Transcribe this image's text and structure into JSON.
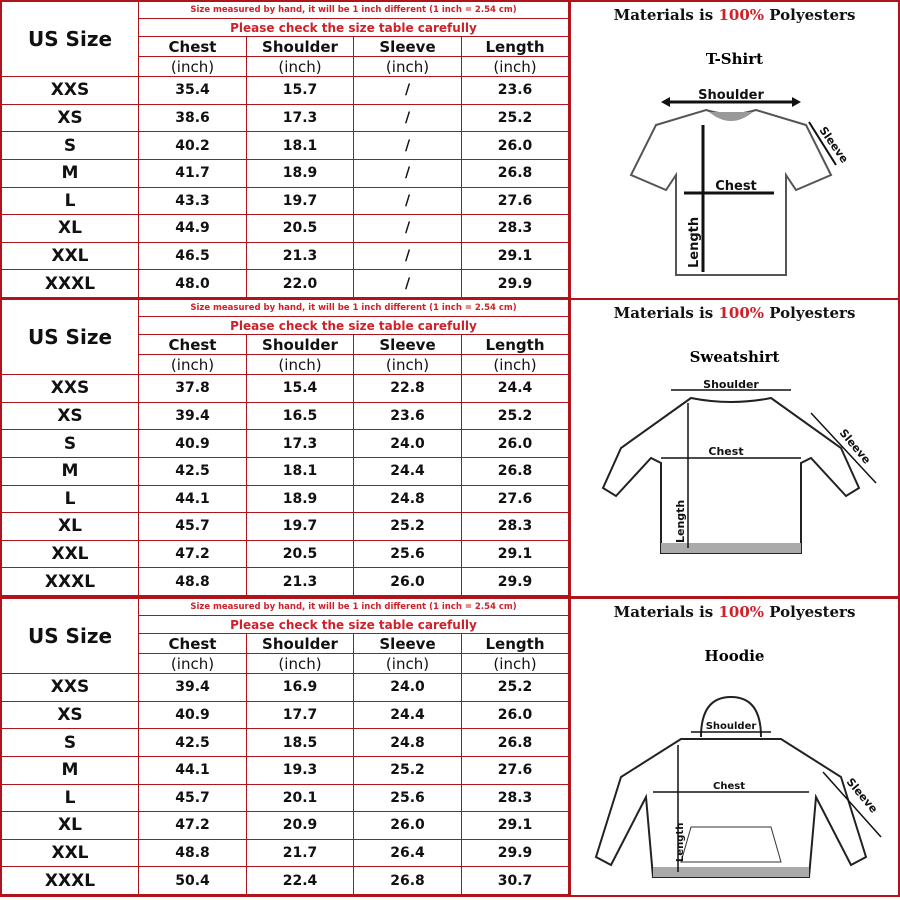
{
  "colors": {
    "accent": "#d0202a",
    "border": "#b0141a"
  },
  "panels": [
    {
      "garment": "T-Shirt",
      "garment_icon": "t-shirt-diagram-icon",
      "labels": {
        "shoulder": "Shoulder",
        "chest": "Chest",
        "sleeve": "Sleeve",
        "length": "Length"
      },
      "rows": [
        [
          "XXS",
          "35.4",
          "15.7",
          "/",
          "23.6"
        ],
        [
          "XS",
          "38.6",
          "17.3",
          "/",
          "25.2"
        ],
        [
          "S",
          "40.2",
          "18.1",
          "/",
          "26.0"
        ],
        [
          "M",
          "41.7",
          "18.9",
          "/",
          "26.8"
        ],
        [
          "L",
          "43.3",
          "19.7",
          "/",
          "27.6"
        ],
        [
          "XL",
          "44.9",
          "20.5",
          "/",
          "28.3"
        ],
        [
          "XXL",
          "46.5",
          "21.3",
          "/",
          "29.1"
        ],
        [
          "XXXL",
          "48.0",
          "22.0",
          "/",
          "29.9"
        ]
      ]
    },
    {
      "garment": "Sweatshirt",
      "garment_icon": "sweatshirt-diagram-icon",
      "labels": {
        "shoulder": "Shoulder",
        "chest": "Chest",
        "sleeve": "Sleeve",
        "length": "Length"
      },
      "rows": [
        [
          "XXS",
          "37.8",
          "15.4",
          "22.8",
          "24.4"
        ],
        [
          "XS",
          "39.4",
          "16.5",
          "23.6",
          "25.2"
        ],
        [
          "S",
          "40.9",
          "17.3",
          "24.0",
          "26.0"
        ],
        [
          "M",
          "42.5",
          "18.1",
          "24.4",
          "26.8"
        ],
        [
          "L",
          "44.1",
          "18.9",
          "24.8",
          "27.6"
        ],
        [
          "XL",
          "45.7",
          "19.7",
          "25.2",
          "28.3"
        ],
        [
          "XXL",
          "47.2",
          "20.5",
          "25.6",
          "29.1"
        ],
        [
          "XXXL",
          "48.8",
          "21.3",
          "26.0",
          "29.9"
        ]
      ]
    },
    {
      "garment": "Hoodie",
      "garment_icon": "hoodie-diagram-icon",
      "labels": {
        "shoulder": "Shoulder",
        "chest": "Chest",
        "sleeve": "Sleeve",
        "length": "Length"
      },
      "rows": [
        [
          "XXS",
          "39.4",
          "16.9",
          "24.0",
          "25.2"
        ],
        [
          "XS",
          "40.9",
          "17.7",
          "24.4",
          "26.0"
        ],
        [
          "S",
          "42.5",
          "18.5",
          "24.8",
          "26.8"
        ],
        [
          "M",
          "44.1",
          "19.3",
          "25.2",
          "27.6"
        ],
        [
          "L",
          "45.7",
          "20.1",
          "25.6",
          "28.3"
        ],
        [
          "XL",
          "47.2",
          "20.9",
          "26.0",
          "29.1"
        ],
        [
          "XXL",
          "48.8",
          "21.7",
          "26.4",
          "29.9"
        ],
        [
          "XXXL",
          "50.4",
          "22.4",
          "26.8",
          "30.7"
        ]
      ]
    }
  ],
  "table": {
    "us_size": "US Size",
    "note": "Size measured by hand, it will be 1 inch different (1 inch = 2.54 cm)",
    "check": "Please check the size table carefully",
    "columns": [
      "Chest",
      "Shoulder",
      "Sleeve",
      "Length"
    ],
    "unit": "(inch)"
  },
  "materials": {
    "prefix": "Materials is",
    "percent": "100%",
    "suffix": "Polyesters"
  }
}
